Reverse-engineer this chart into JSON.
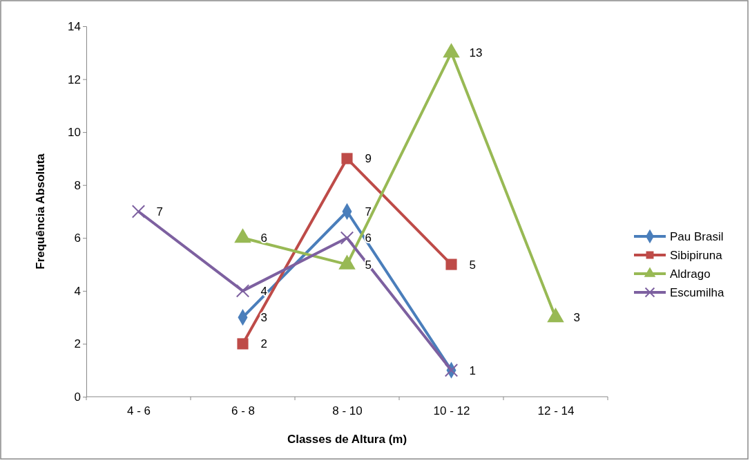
{
  "chart_data": {
    "type": "line",
    "xlabel": "Classes de Altura (m)",
    "ylabel": "Frequência Absoluta",
    "categories": [
      "4 - 6",
      "6 - 8",
      "8 - 10",
      "10 - 12",
      "12 - 14"
    ],
    "ylim": [
      0,
      14
    ],
    "yticks": [
      0,
      2,
      4,
      6,
      8,
      10,
      12,
      14
    ],
    "grid": false,
    "legend": "right",
    "line_style": "solid",
    "series": [
      {
        "name": "Pau Brasil",
        "color": "#4a7ebb",
        "marker": "diamond",
        "values": [
          null,
          3,
          7,
          1,
          null
        ],
        "value_labels": [
          null,
          "3",
          "7",
          "1",
          null
        ]
      },
      {
        "name": "Sibipiruna",
        "color": "#be4b48",
        "marker": "square",
        "values": [
          null,
          2,
          9,
          5,
          null
        ],
        "value_labels": [
          null,
          "2",
          "9",
          "5",
          null
        ]
      },
      {
        "name": "Aldrago",
        "color": "#98b954",
        "marker": "triangle",
        "values": [
          null,
          6,
          5,
          13,
          3
        ],
        "value_labels": [
          null,
          "6",
          "5",
          "13",
          "3"
        ]
      },
      {
        "name": "Escumilha",
        "color": "#7d60a0",
        "marker": "cross",
        "values": [
          7,
          4,
          6,
          1,
          null
        ],
        "value_labels": [
          "7",
          "4",
          "6",
          null,
          null
        ]
      }
    ]
  }
}
